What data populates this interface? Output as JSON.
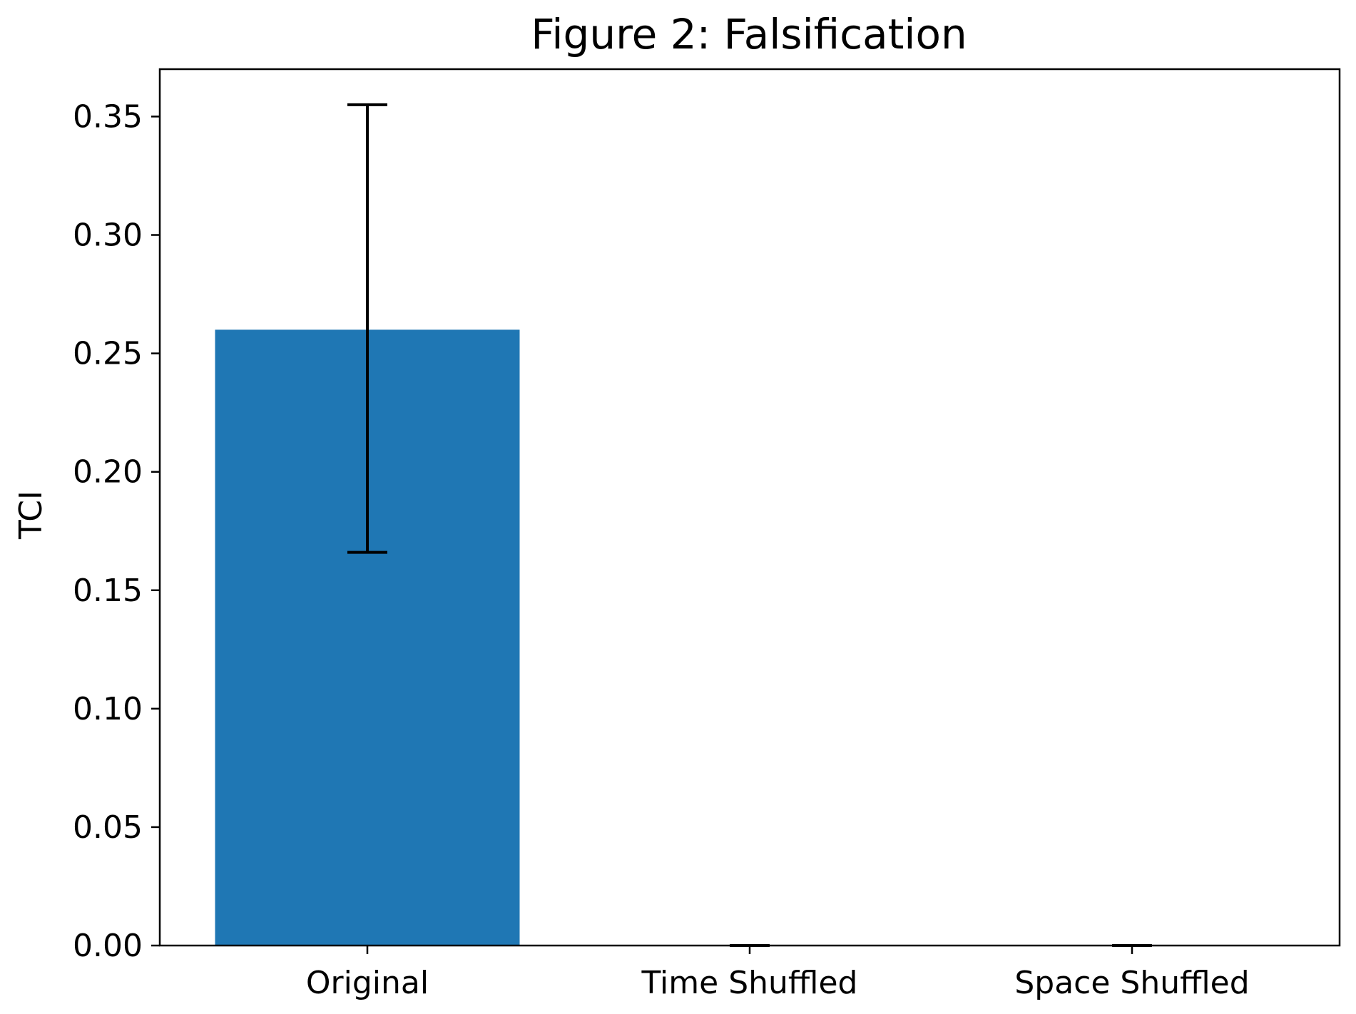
{
  "chart_data": {
    "type": "bar",
    "title": "Figure 2: Falsification",
    "xlabel": "",
    "ylabel": "TCI",
    "categories": [
      "Original",
      "Time Shuffled",
      "Space Shuffled"
    ],
    "values": [
      0.26,
      0.0,
      0.0
    ],
    "error_bars": {
      "lower": [
        0.166,
        0.0,
        0.0
      ],
      "upper": [
        0.355,
        0.0,
        0.0
      ]
    },
    "ylim": [
      0.0,
      0.37
    ],
    "yticks": [
      0.0,
      0.05,
      0.1,
      0.15,
      0.2,
      0.25,
      0.3,
      0.35
    ],
    "ytick_labels": [
      "0.00",
      "0.05",
      "0.10",
      "0.15",
      "0.20",
      "0.25",
      "0.30",
      "0.35"
    ],
    "grid": false,
    "bar_color": "#1f77b4",
    "error_bar_color": "#000000"
  }
}
